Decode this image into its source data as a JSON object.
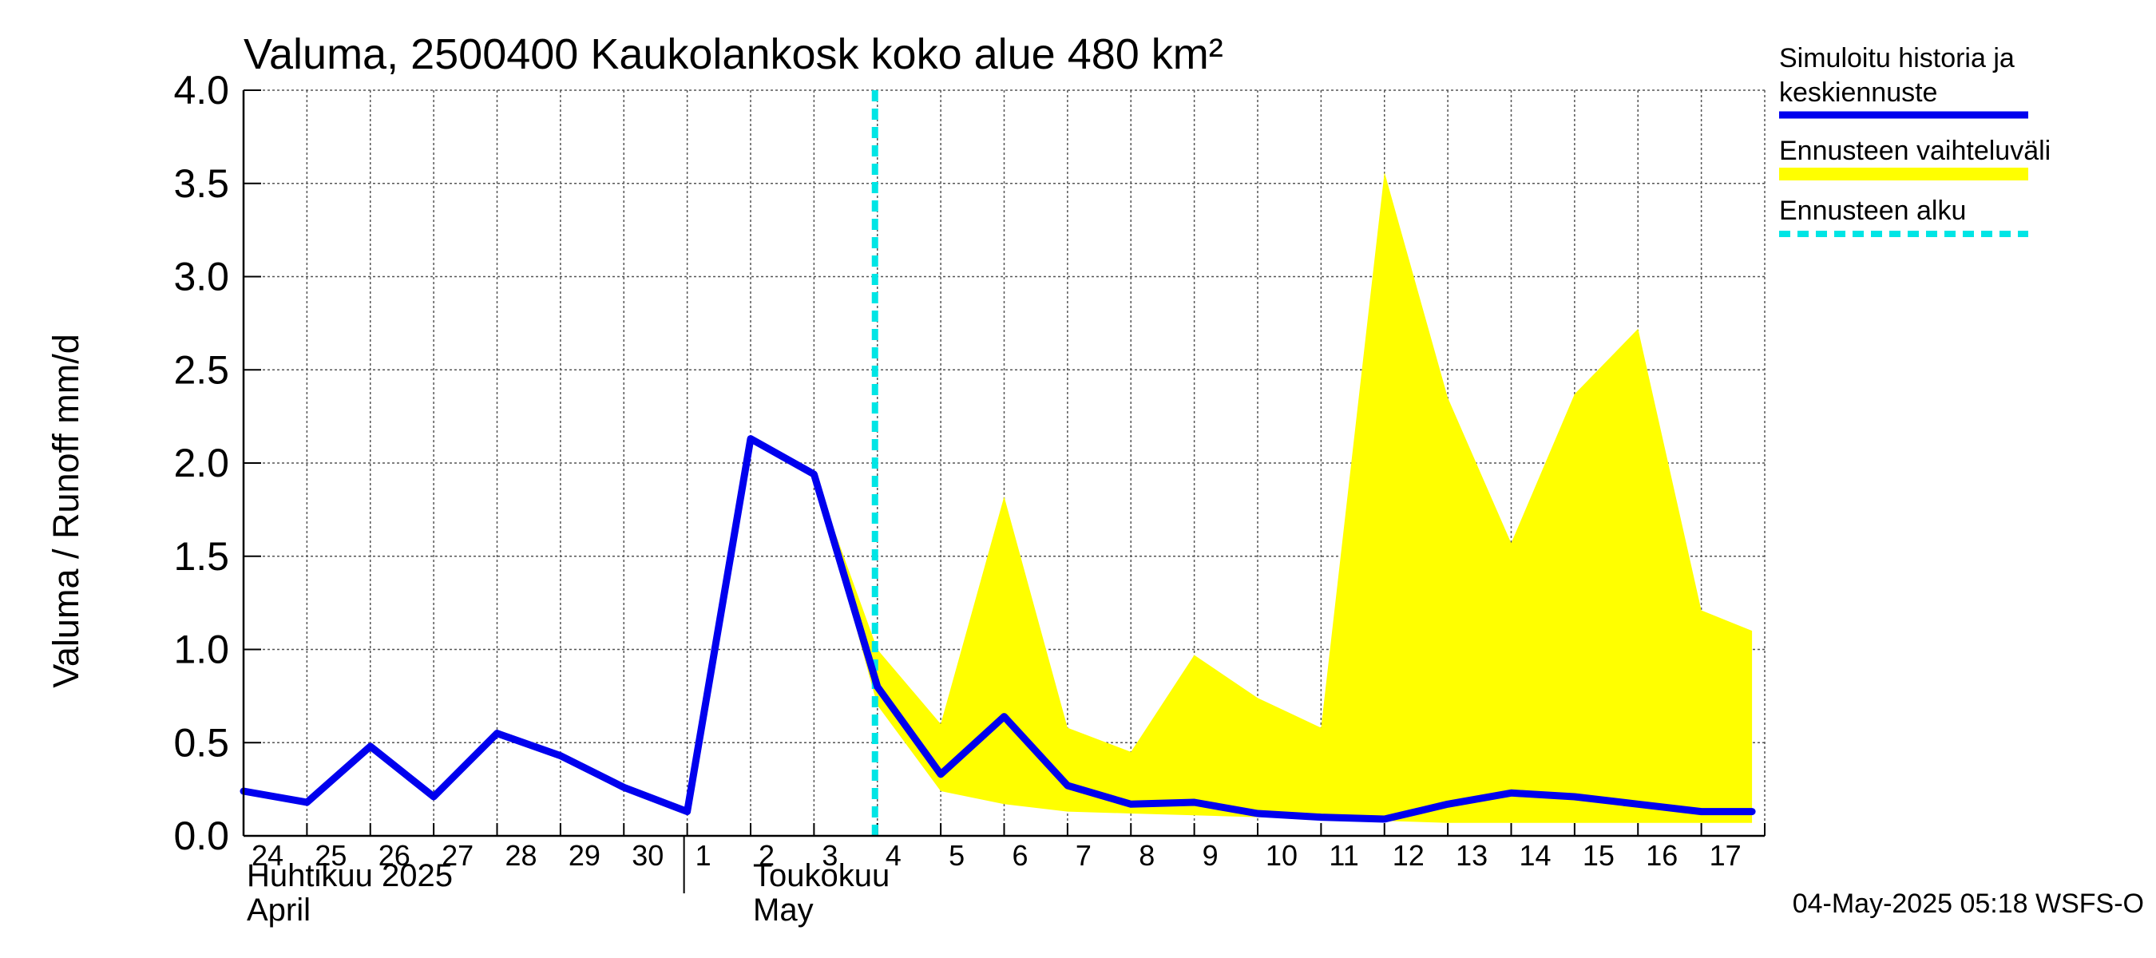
{
  "chart_data": {
    "type": "line",
    "title": "Valuma, 2500400 Kaukolankosk koko alue 480 km²",
    "ylabel": "Valuma / Runoff     mm/d",
    "xlabel": "",
    "ylim": [
      0,
      4
    ],
    "yticks": [
      "0.0",
      "0.5",
      "1.0",
      "1.5",
      "2.0",
      "2.5",
      "3.0",
      "3.5",
      "4.0"
    ],
    "x_tick_labels": [
      "24",
      "25",
      "26",
      "27",
      "28",
      "29",
      "30",
      "1",
      "2",
      "3",
      "4",
      "5",
      "6",
      "7",
      "8",
      "9",
      "10",
      "11",
      "12",
      "13",
      "14",
      "15",
      "16",
      "17"
    ],
    "month_labels": {
      "april_fi": "Huhtikuu  2025",
      "april_en": "April",
      "may_fi": "Toukokuu",
      "may_en": "May"
    },
    "forecast_start_day_index": 10,
    "series": [
      {
        "name": "Simuloitu historia ja keskiennuste",
        "color": "#0000ee",
        "x": [
          0,
          1,
          2,
          3,
          4,
          5,
          6,
          7,
          8,
          9,
          10,
          11,
          12,
          13,
          14,
          15,
          16,
          17,
          18,
          19,
          20,
          21,
          22,
          23,
          23.8
        ],
        "values": [
          0.24,
          0.18,
          0.48,
          0.21,
          0.55,
          0.43,
          0.26,
          0.13,
          2.13,
          1.94,
          0.8,
          0.33,
          0.64,
          0.27,
          0.17,
          0.18,
          0.12,
          0.1,
          0.09,
          0.17,
          0.23,
          0.21,
          0.17,
          0.13,
          0.13
        ]
      },
      {
        "name": "Ennusteen vaihteluväli",
        "color": "#ffff00",
        "x": [
          9,
          10,
          11,
          12,
          13,
          14,
          15,
          16,
          17,
          18,
          19,
          20,
          21,
          22,
          23,
          23.8
        ],
        "upper": [
          1.94,
          1.0,
          0.6,
          1.82,
          0.58,
          0.45,
          0.97,
          0.74,
          0.58,
          3.56,
          2.35,
          1.57,
          2.37,
          2.72,
          1.21,
          1.1
        ],
        "lower": [
          1.94,
          0.7,
          0.24,
          0.17,
          0.13,
          0.12,
          0.11,
          0.1,
          0.09,
          0.08,
          0.07,
          0.07,
          0.07,
          0.07,
          0.07,
          0.07
        ]
      },
      {
        "name": "Ennusteen alku",
        "color": "#00e5e5"
      }
    ],
    "legend": [
      {
        "label_line1": "Simuloitu historia ja",
        "label_line2": "keskiennuste",
        "color": "#0000ee",
        "style": "solid"
      },
      {
        "label_line1": "Ennusteen vaihteluväli",
        "label_line2": "",
        "color": "#ffff00",
        "style": "solid"
      },
      {
        "label_line1": "Ennusteen alku",
        "label_line2": "",
        "color": "#00e5e5",
        "style": "dashed"
      }
    ],
    "legend_position": "top-right",
    "grid": true,
    "footer": "04-May-2025 05:18 WSFS-O"
  }
}
